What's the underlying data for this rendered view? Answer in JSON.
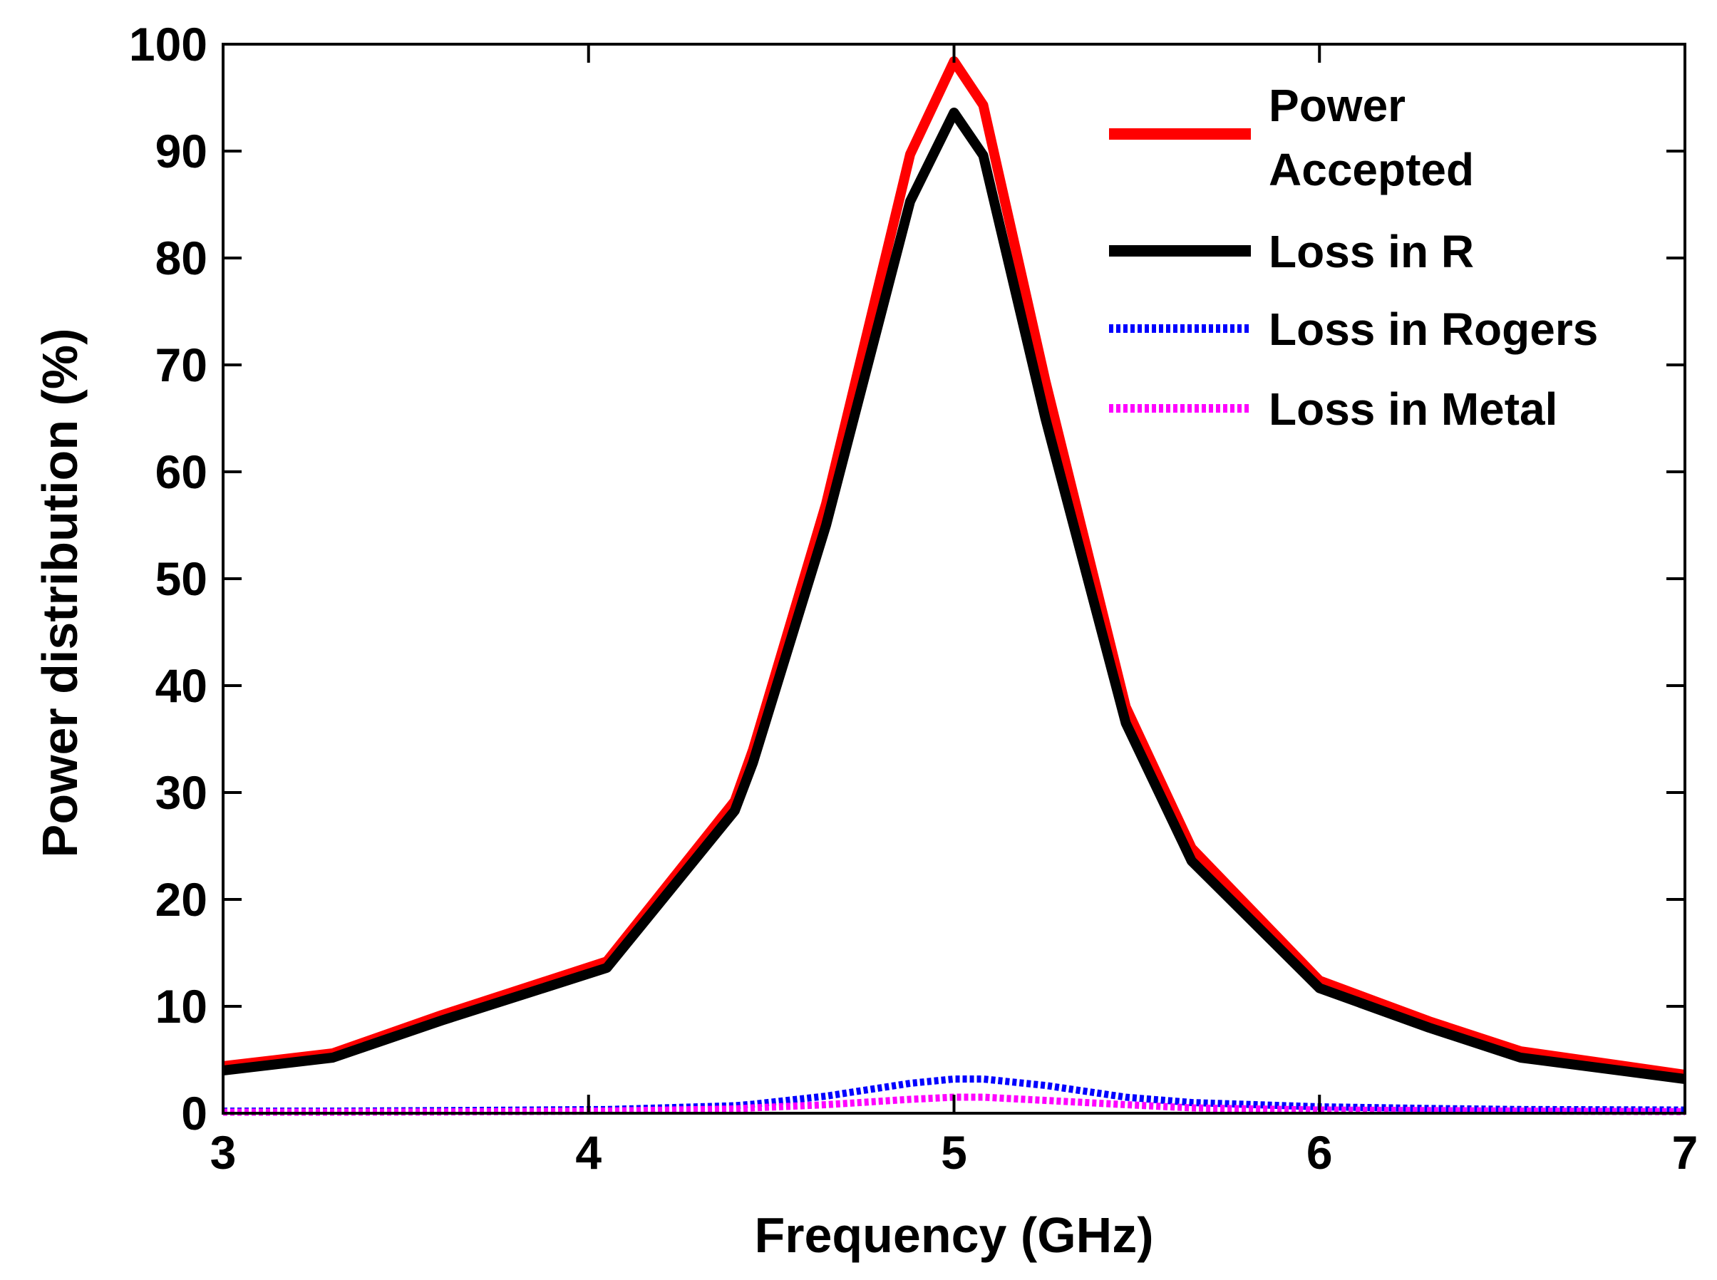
{
  "chart_data": {
    "type": "line",
    "title": "",
    "xlabel": "Frequency (GHz)",
    "ylabel": "Power distribution (%)",
    "xlim": [
      3,
      7
    ],
    "ylim": [
      0,
      100
    ],
    "xticks": [
      3,
      4,
      5,
      6,
      7
    ],
    "yticks": [
      0,
      10,
      20,
      30,
      40,
      50,
      60,
      70,
      80,
      90,
      100
    ],
    "grid": false,
    "legend_position": "top-right",
    "x": [
      3.0,
      3.3,
      3.6,
      4.05,
      4.4,
      4.45,
      4.65,
      4.88,
      5.0,
      5.08,
      5.25,
      5.47,
      5.65,
      6.0,
      6.3,
      6.55,
      7.0
    ],
    "series": [
      {
        "name": "Power Accepted",
        "legend_lines": [
          "Power",
          "Accepted"
        ],
        "color": "#ff0000",
        "style": "solid",
        "values": [
          4.4,
          5.6,
          9.2,
          14.2,
          29.2,
          34.0,
          57.0,
          89.7,
          98.4,
          94.3,
          68.5,
          38.0,
          24.8,
          12.4,
          8.6,
          5.8,
          3.6
        ]
      },
      {
        "name": "Loss in R",
        "legend_lines": [
          "Loss in R"
        ],
        "color": "#000000",
        "style": "solid",
        "values": [
          4.0,
          5.2,
          8.7,
          13.6,
          28.3,
          32.8,
          55.0,
          85.3,
          93.6,
          89.6,
          65.0,
          36.5,
          23.6,
          11.7,
          8.0,
          5.2,
          3.2
        ]
      },
      {
        "name": "Loss in Rogers",
        "legend_lines": [
          "Loss in Rogers"
        ],
        "color": "#0000ff",
        "style": "dotted",
        "values": [
          0.2,
          0.2,
          0.25,
          0.35,
          0.7,
          0.85,
          1.6,
          2.8,
          3.2,
          3.2,
          2.6,
          1.5,
          1.0,
          0.6,
          0.45,
          0.35,
          0.3
        ]
      },
      {
        "name": "Loss in Metal",
        "legend_lines": [
          "Loss in Metal"
        ],
        "color": "#ff00ff",
        "style": "dotted",
        "values": [
          0.1,
          0.1,
          0.12,
          0.2,
          0.4,
          0.5,
          0.8,
          1.3,
          1.5,
          1.5,
          1.2,
          0.8,
          0.5,
          0.3,
          0.25,
          0.2,
          0.15
        ]
      }
    ]
  }
}
